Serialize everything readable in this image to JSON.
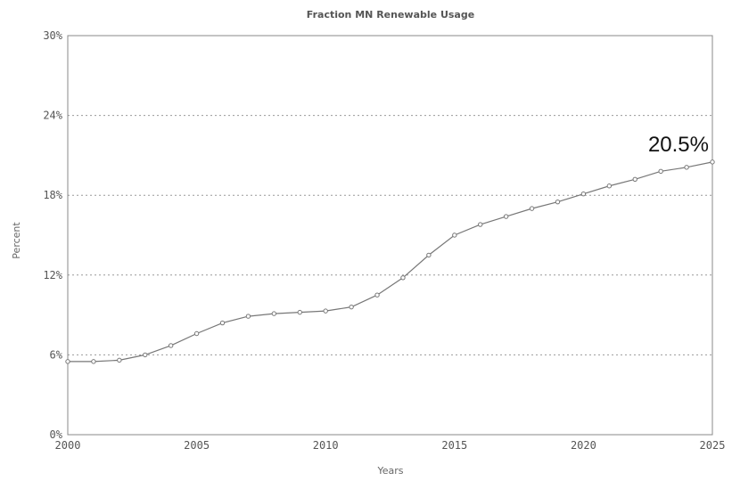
{
  "chart_data": {
    "type": "line",
    "title": "Fraction MN Renewable Usage",
    "xlabel": "Years",
    "ylabel": "Percent",
    "xlim": [
      2000,
      2025
    ],
    "ylim": [
      0,
      30
    ],
    "x_ticks": [
      "2000",
      "2005",
      "2010",
      "2015",
      "2020",
      "2025"
    ],
    "y_ticks": [
      "0%",
      "6%",
      "12%",
      "18%",
      "24%",
      "30%"
    ],
    "grid": "horizontal dotted",
    "legend": "none",
    "series": [
      {
        "x": [
          2000,
          2001,
          2002,
          2003,
          2004,
          2005,
          2006,
          2007,
          2008,
          2009,
          2010,
          2011,
          2012,
          2013,
          2014,
          2015,
          2016,
          2017,
          2018,
          2019,
          2020,
          2021,
          2022,
          2023,
          2024,
          2025
        ],
        "y": [
          5.5,
          5.5,
          5.6,
          6.0,
          6.7,
          7.6,
          8.4,
          8.9,
          9.1,
          9.2,
          9.3,
          9.6,
          10.5,
          11.8,
          13.5,
          15.0,
          15.8,
          16.4,
          17.0,
          17.5,
          18.1,
          18.7,
          19.2,
          19.8,
          20.1,
          20.5
        ],
        "color": "#777777"
      }
    ],
    "annotations": [
      {
        "text": "20.5%",
        "x": 2025,
        "y": 20.5
      }
    ]
  }
}
